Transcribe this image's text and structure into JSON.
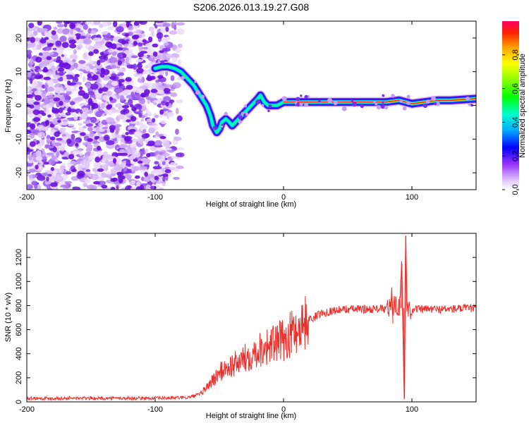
{
  "title": "S206.2026.013.19.27.G08",
  "chart_data": [
    {
      "type": "heatmap",
      "xlabel": "Height of straight line (km)",
      "ylabel": "Frequency (Hz)",
      "xlim": [
        -200,
        150
      ],
      "ylim": [
        -25,
        25
      ],
      "xticks": [
        -200,
        -100,
        0,
        100
      ],
      "yticks": [
        -20,
        -10,
        0,
        10,
        20
      ],
      "colorbar": {
        "label": "Normalized spectral amplitude",
        "range": [
          0,
          1
        ],
        "ticks": [
          0.0,
          0.2,
          0.4,
          0.6,
          0.8
        ]
      },
      "ridge": {
        "x": [
          -100,
          -95,
          -90,
          -85,
          -80,
          -75,
          -70,
          -65,
          -60,
          -57,
          -55,
          -52,
          -50,
          -48,
          -45,
          -42,
          -40,
          -35,
          -30,
          -25,
          -20,
          -18,
          -15,
          -12,
          -10,
          -5,
          0,
          10,
          20,
          40,
          60,
          80,
          90,
          100,
          110,
          120,
          130,
          150
        ],
        "y": [
          11,
          11.5,
          11.5,
          11,
          10,
          8,
          6,
          3,
          0,
          -3,
          -6,
          -8,
          -7,
          -5,
          -4,
          -5,
          -6,
          -4,
          -2,
          0,
          2,
          3,
          1,
          0,
          0,
          0,
          1,
          1,
          1,
          1,
          1,
          1,
          1.5,
          0.5,
          1,
          1.5,
          1.5,
          2
        ]
      }
    },
    {
      "type": "line",
      "xlabel": "Height of straight line (km)",
      "ylabel": "SNR (10 * v/v)",
      "xlim": [
        -200,
        150
      ],
      "ylim": [
        0,
        1400
      ],
      "xticks": [
        -200,
        -100,
        0,
        100
      ],
      "yticks": [
        0,
        200,
        400,
        600,
        800,
        1000,
        1200
      ],
      "series": [
        {
          "name": "SNR",
          "color": "#e8302c",
          "x": [
            -200,
            -150,
            -100,
            -75,
            -65,
            -60,
            -55,
            -50,
            -45,
            -40,
            -35,
            -30,
            -25,
            -20,
            -15,
            -10,
            -5,
            0,
            5,
            10,
            15,
            20,
            25,
            30,
            40,
            50,
            60,
            70,
            75,
            80,
            85,
            88,
            90,
            92,
            94,
            95,
            96,
            98,
            100,
            110,
            120,
            130,
            140,
            150
          ],
          "values": [
            30,
            30,
            30,
            35,
            60,
            120,
            180,
            240,
            280,
            300,
            330,
            360,
            400,
            430,
            460,
            470,
            490,
            510,
            560,
            600,
            650,
            680,
            710,
            740,
            760,
            770,
            770,
            770,
            775,
            770,
            790,
            820,
            780,
            1100,
            30,
            1350,
            780,
            770,
            770,
            770,
            770,
            770,
            775,
            780
          ]
        }
      ]
    }
  ]
}
